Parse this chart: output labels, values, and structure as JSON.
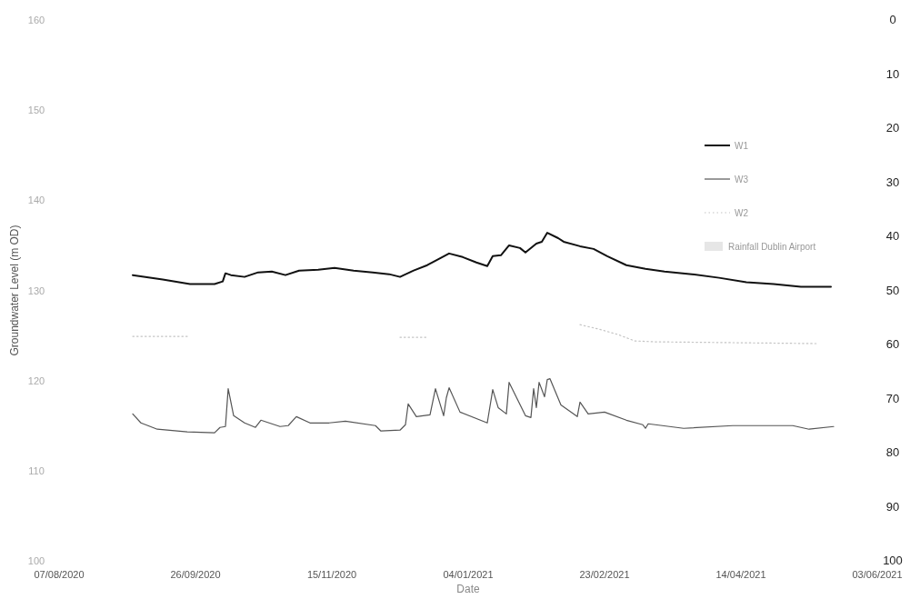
{
  "chart_data": {
    "type": "line",
    "xlabel": "Date",
    "ylabel": "Groundwater Level (m OD)",
    "xlim": [
      "2020-08-07",
      "2021-06-03"
    ],
    "xticks": [
      {
        "value": "2020-08-07",
        "label": "07/08/2020"
      },
      {
        "value": "2020-09-26",
        "label": "26/09/2020"
      },
      {
        "value": "2020-11-15",
        "label": "15/11/2020"
      },
      {
        "value": "2021-01-04",
        "label": "04/01/2021"
      },
      {
        "value": "2021-02-23",
        "label": "23/02/2021"
      },
      {
        "value": "2021-04-14",
        "label": "14/04/2021"
      },
      {
        "value": "2021-06-03",
        "label": "03/06/2021"
      }
    ],
    "ylim": [
      100,
      160
    ],
    "yticks": [
      100,
      110,
      120,
      130,
      140,
      150,
      160
    ],
    "y2lim": [
      100,
      0
    ],
    "y2ticks": [
      0,
      10,
      20,
      30,
      40,
      50,
      60,
      70,
      80,
      90,
      100
    ],
    "legend": "right",
    "grid": false,
    "series": [
      {
        "name": "W1",
        "color": "#111111",
        "line_style": "solid",
        "x": [
          "2020-09-03",
          "2020-09-14",
          "2020-09-24",
          "2020-10-03",
          "2020-10-06",
          "2020-10-07",
          "2020-10-09",
          "2020-10-14",
          "2020-10-19",
          "2020-10-24",
          "2020-10-29",
          "2020-11-03",
          "2020-11-10",
          "2020-11-16",
          "2020-11-23",
          "2020-11-30",
          "2020-12-06",
          "2020-12-10",
          "2020-12-15",
          "2020-12-20",
          "2020-12-23",
          "2020-12-28",
          "2021-01-02",
          "2021-01-07",
          "2021-01-11",
          "2021-01-13",
          "2021-01-16",
          "2021-01-19",
          "2021-01-23",
          "2021-01-25",
          "2021-01-29",
          "2021-01-31",
          "2021-02-02",
          "2021-02-06",
          "2021-02-08",
          "2021-02-14",
          "2021-02-19",
          "2021-02-24",
          "2021-03-03",
          "2021-03-10",
          "2021-03-17",
          "2021-03-27",
          "2021-04-06",
          "2021-04-16",
          "2021-04-26",
          "2021-05-06",
          "2021-05-17"
        ],
        "values": [
          131.7,
          131.2,
          130.7,
          130.7,
          131.0,
          131.9,
          131.7,
          131.5,
          132.0,
          132.1,
          131.7,
          132.2,
          132.3,
          132.5,
          132.2,
          132.0,
          131.8,
          131.5,
          132.2,
          132.8,
          133.3,
          134.1,
          133.7,
          133.1,
          132.7,
          133.8,
          133.9,
          135.0,
          134.7,
          134.2,
          135.2,
          135.4,
          136.4,
          135.8,
          135.4,
          134.9,
          134.6,
          133.8,
          132.8,
          132.4,
          132.1,
          131.8,
          131.4,
          130.9,
          130.7,
          130.4,
          130.4
        ]
      },
      {
        "name": "W3",
        "color": "#555555",
        "line_style": "solid",
        "x": [
          "2020-09-03",
          "2020-09-06",
          "2020-09-12",
          "2020-09-23",
          "2020-10-03",
          "2020-10-05",
          "2020-10-07",
          "2020-10-08",
          "2020-10-10",
          "2020-10-14",
          "2020-10-18",
          "2020-10-20",
          "2020-10-27",
          "2020-10-30",
          "2020-11-02",
          "2020-11-07",
          "2020-11-14",
          "2020-11-20",
          "2020-12-01",
          "2020-12-03",
          "2020-12-10",
          "2020-12-12",
          "2020-12-13",
          "2020-12-16",
          "2020-12-21",
          "2020-12-23",
          "2020-12-26",
          "2020-12-27",
          "2020-12-28",
          "2021-01-01",
          "2021-01-11",
          "2021-01-13",
          "2021-01-15",
          "2021-01-18",
          "2021-01-19",
          "2021-01-25",
          "2021-01-27",
          "2021-01-28",
          "2021-01-29",
          "2021-01-30",
          "2021-02-01",
          "2021-02-02",
          "2021-02-03",
          "2021-02-07",
          "2021-02-13",
          "2021-02-14",
          "2021-02-17",
          "2021-02-23",
          "2021-03-03",
          "2021-03-09",
          "2021-03-10",
          "2021-03-11",
          "2021-03-24",
          "2021-04-11",
          "2021-05-03",
          "2021-05-09",
          "2021-05-18"
        ],
        "values": [
          116.3,
          115.3,
          114.6,
          114.3,
          114.2,
          114.8,
          114.9,
          119.1,
          116.1,
          115.3,
          114.8,
          115.6,
          114.9,
          115.0,
          116.0,
          115.3,
          115.3,
          115.5,
          115.0,
          114.4,
          114.5,
          115.1,
          117.4,
          116.0,
          116.2,
          119.1,
          116.1,
          118.1,
          119.2,
          116.5,
          115.3,
          119.0,
          117.0,
          116.3,
          119.8,
          116.1,
          115.9,
          119.1,
          117.0,
          119.8,
          118.2,
          120.1,
          120.2,
          117.3,
          116.0,
          117.6,
          116.3,
          116.5,
          115.6,
          115.1,
          114.7,
          115.2,
          114.7,
          115.0,
          115.0,
          114.6,
          114.9
        ]
      },
      {
        "name": "W2",
        "color": "#c4c4c4",
        "line_style": "dotted",
        "x": [
          "2020-09-03",
          "2020-09-24",
          "2020-10-10",
          "2020-12-10",
          "2020-12-20",
          "2021-01-10",
          "2021-02-14",
          "2021-02-21",
          "2021-02-28",
          "2021-03-06",
          "2021-03-13",
          "2021-05-12"
        ],
        "values": [
          124.9,
          124.9,
          null,
          124.8,
          124.8,
          null,
          126.2,
          125.7,
          125.1,
          124.4,
          124.3,
          124.1
        ]
      },
      {
        "name": "Rainfall Dublin Airport",
        "type": "bar",
        "color": "#e6e6e6"
      }
    ]
  }
}
